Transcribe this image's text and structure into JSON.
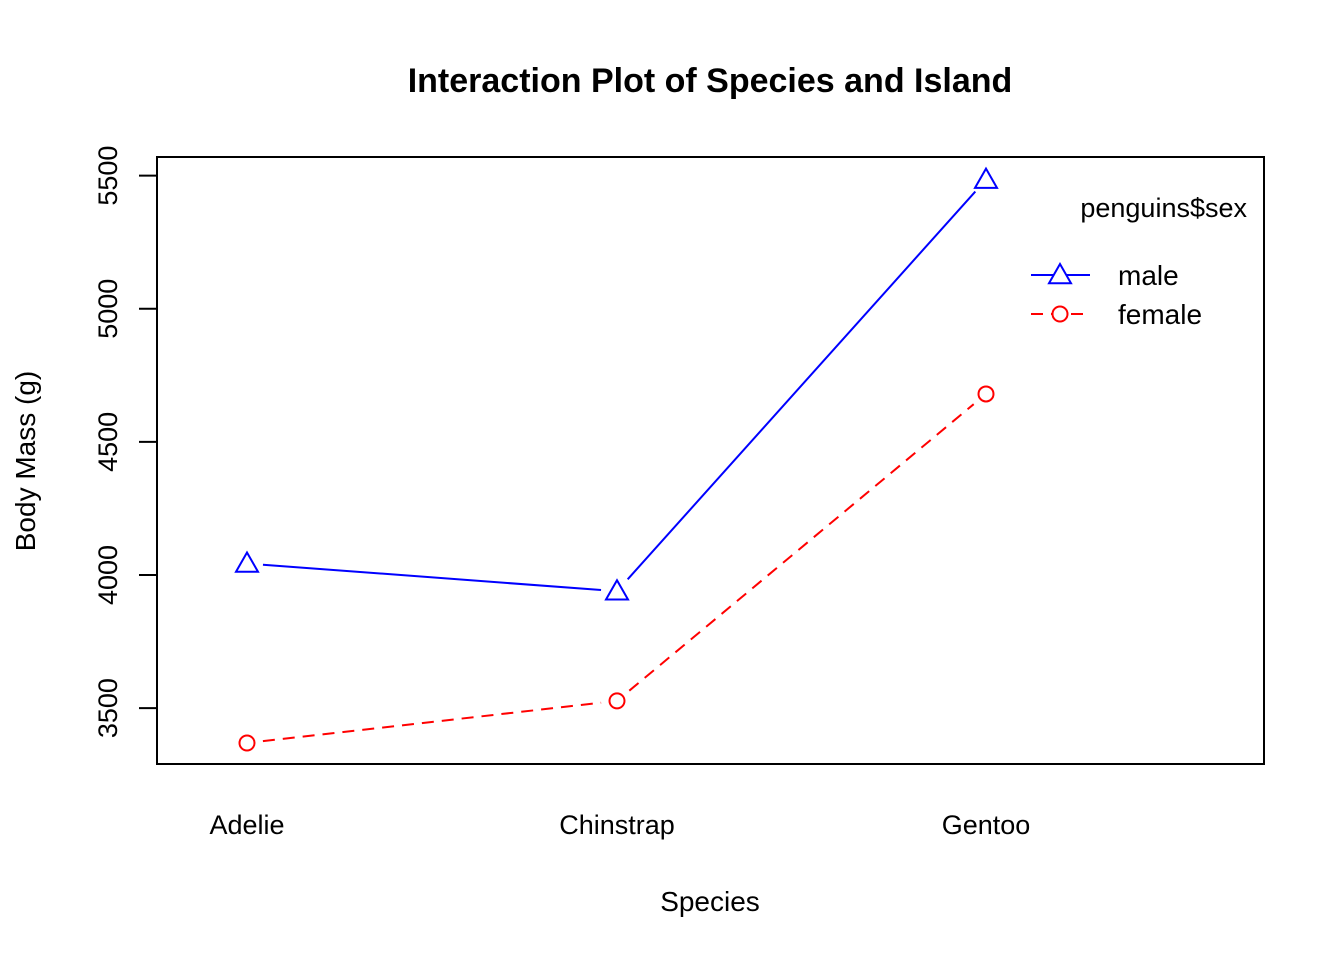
{
  "chart_data": {
    "type": "line",
    "title": "Interaction Plot of Species and Island",
    "xlabel": "Species",
    "ylabel": "Body Mass (g)",
    "categories": [
      "Adelie",
      "Chinstrap",
      "Gentoo"
    ],
    "ylim": [
      3290,
      5570
    ],
    "yticks": [
      3500,
      4000,
      4500,
      5000,
      5500
    ],
    "grid": false,
    "legend": {
      "title": "penguins$sex",
      "placement": "top-right"
    },
    "series": [
      {
        "name": "male",
        "values": [
          4043,
          3939,
          5485
        ],
        "color": "#0000ff",
        "marker": "triangle",
        "line": "solid"
      },
      {
        "name": "female",
        "values": [
          3369,
          3527,
          4680
        ],
        "color": "#ff0000",
        "marker": "circle",
        "line": "dashed"
      }
    ]
  }
}
